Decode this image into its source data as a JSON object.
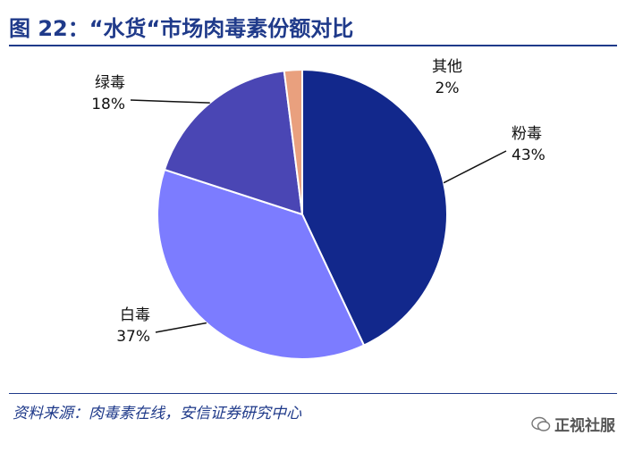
{
  "title": "图 22：“水货“市场肉毒素份额对比",
  "source": "资料来源：肉毒素在线，安信证券研究中心",
  "watermark": "正视社服",
  "chart_data": {
    "type": "pie",
    "title": "图 22：“水货“市场肉毒素份额对比",
    "slices": [
      {
        "label": "粉毒",
        "value": 43,
        "pct": "43%",
        "color": "#12288c"
      },
      {
        "label": "白毒",
        "value": 37,
        "pct": "37%",
        "color": "#7c7cff"
      },
      {
        "label": "绿毒",
        "value": 18,
        "pct": "18%",
        "color": "#4a46b4"
      },
      {
        "label": "其他",
        "value": 2,
        "pct": "2%",
        "color": "#e9a07e"
      }
    ]
  }
}
